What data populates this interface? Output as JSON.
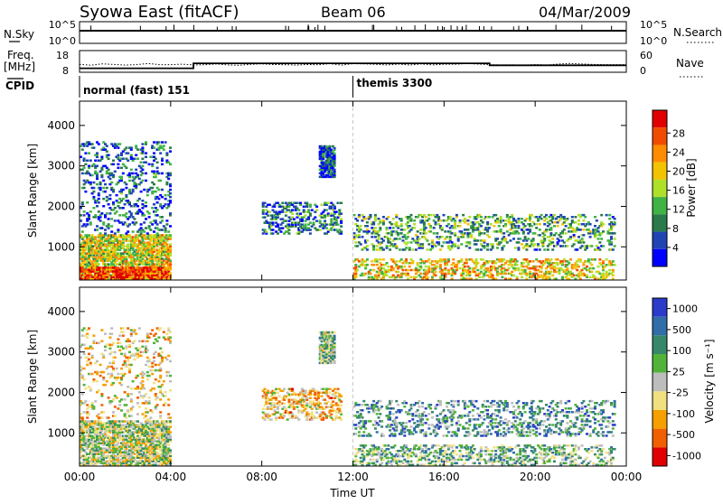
{
  "header": {
    "station": "Syowa East (fitACF)",
    "beam": "Beam 06",
    "date": "04/Mar/2009"
  },
  "strip_nsky": {
    "label": "N.Sky",
    "left_ticks": [
      "10^5",
      "10^0"
    ],
    "right_ticks": [
      "10^5",
      "10^0"
    ],
    "right_label": "N.Search"
  },
  "strip_freq": {
    "label_line1": "Freq.",
    "label_line2": "[MHz]",
    "left_ticks": [
      "18",
      "8"
    ],
    "right_ticks": [
      "60",
      "0"
    ],
    "right_label": "Nave",
    "freq_steps_mhz": [
      {
        "t0": 0.0,
        "t1": 5.0,
        "f": 10.0
      },
      {
        "t0": 5.0,
        "t1": 18.0,
        "f": 12.5
      },
      {
        "t0": 18.0,
        "t1": 24.0,
        "f": 11.5
      }
    ]
  },
  "cpid": {
    "label": "CPID",
    "modes": [
      {
        "label": "normal (fast) 151",
        "start_hour": 0.0
      },
      {
        "label": "themis 3300",
        "start_hour": 12.0
      }
    ]
  },
  "colors": {
    "power": [
      "#0000ff",
      "#1f45b5",
      "#2a7a4a",
      "#3fb344",
      "#aee02a",
      "#f2c300",
      "#ff8c00",
      "#f04c00",
      "#e00000"
    ],
    "velocity": [
      "#2a3cc8",
      "#2f6ea8",
      "#37886a",
      "#52b33a",
      "#bdbdbd",
      "#f0e080",
      "#f5a000",
      "#f06000",
      "#e00000"
    ]
  },
  "chart_data": [
    {
      "type": "heatmap",
      "panel": "power",
      "ylabel": "Slant Range [km]",
      "yticks": [
        1000,
        2000,
        3000,
        4000
      ],
      "ylim": [
        180,
        4600
      ],
      "xlim": [
        0,
        24
      ],
      "colorbar": {
        "label": "Power [dB]",
        "ticks": [
          "4",
          "8",
          "12",
          "16",
          "20",
          "24",
          "28"
        ]
      },
      "regions": [
        {
          "x": [
            0.0,
            4.0
          ],
          "y": [
            180,
            1300
          ],
          "level": 0.55,
          "density": 0.7
        },
        {
          "x": [
            0.0,
            4.0
          ],
          "y": [
            180,
            500
          ],
          "level": 0.85,
          "density": 0.8
        },
        {
          "x": [
            0.0,
            4.0
          ],
          "y": [
            1300,
            3600
          ],
          "level": 0.2,
          "density": 0.18
        },
        {
          "x": [
            8.0,
            11.5
          ],
          "y": [
            1300,
            2100
          ],
          "level": 0.25,
          "density": 0.35
        },
        {
          "x": [
            10.5,
            11.2
          ],
          "y": [
            2700,
            3500
          ],
          "level": 0.15,
          "density": 0.8
        },
        {
          "x": [
            12.0,
            23.5
          ],
          "y": [
            900,
            1800
          ],
          "level": 0.35,
          "density": 0.25
        },
        {
          "x": [
            12.0,
            23.5
          ],
          "y": [
            180,
            700
          ],
          "level": 0.6,
          "density": 0.35
        }
      ]
    },
    {
      "type": "heatmap",
      "panel": "velocity",
      "ylabel": "Slant Range [km]",
      "yticks": [
        1000,
        2000,
        3000,
        4000
      ],
      "ylim": [
        180,
        4600
      ],
      "xlim": [
        0,
        24
      ],
      "xticks": [
        "00:00",
        "04:00",
        "08:00",
        "12:00",
        "16:00",
        "20:00",
        "00:00"
      ],
      "xlabel": "Time UT",
      "colorbar": {
        "label": "Velocity [m s⁻¹]",
        "ticks": [
          "1000",
          "500",
          "100",
          "25",
          "-25",
          "-100",
          "-500",
          "-1000"
        ]
      },
      "regions": [
        {
          "x": [
            0.0,
            4.0
          ],
          "y": [
            180,
            1300
          ],
          "level": 0.5,
          "density": 0.7
        },
        {
          "x": [
            0.0,
            4.0
          ],
          "y": [
            1300,
            3600
          ],
          "level": 0.6,
          "density": 0.15
        },
        {
          "x": [
            8.0,
            11.5
          ],
          "y": [
            1300,
            2100
          ],
          "level": 0.65,
          "density": 0.35
        },
        {
          "x": [
            10.5,
            11.2
          ],
          "y": [
            2700,
            3500
          ],
          "level": 0.45,
          "density": 0.8
        },
        {
          "x": [
            12.0,
            23.5
          ],
          "y": [
            900,
            1800
          ],
          "level": 0.3,
          "density": 0.25
        },
        {
          "x": [
            12.0,
            23.5
          ],
          "y": [
            180,
            700
          ],
          "level": 0.4,
          "density": 0.3
        }
      ]
    }
  ]
}
